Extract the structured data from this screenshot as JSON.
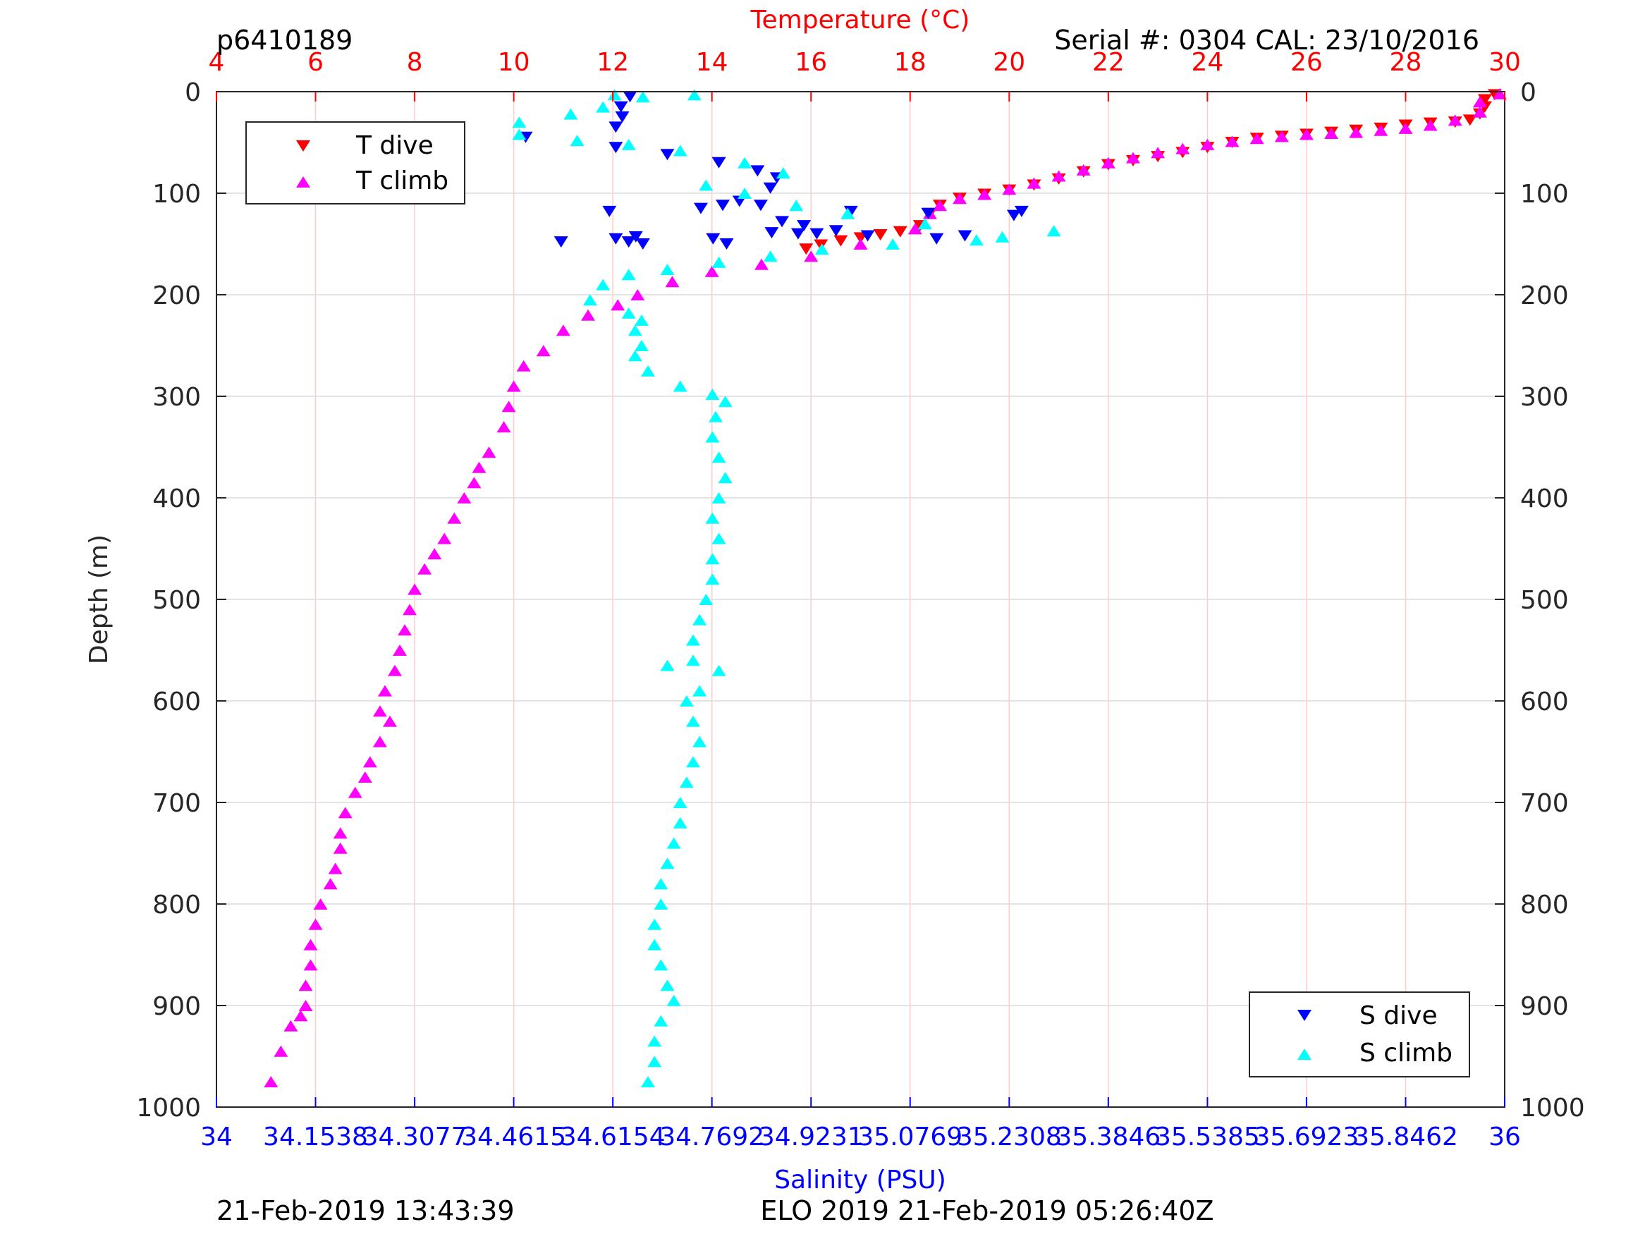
{
  "header": {
    "left": "p6410189",
    "right": "Serial #: 0304  CAL: 23/10/2016"
  },
  "footer": {
    "left": "21-Feb-2019 13:43:39",
    "center": "ELO 2019 21-Feb-2019 05:26:40Z"
  },
  "chart_data": {
    "type": "scatter",
    "title": "",
    "ylabel": "Depth (m)",
    "ylim": [
      0,
      1000
    ],
    "y_reversed": true,
    "y_ticks": [
      "0",
      "100",
      "200",
      "300",
      "400",
      "500",
      "600",
      "700",
      "800",
      "900",
      "1000"
    ],
    "temperature_axis": {
      "label": "Temperature (°C)",
      "position": "top",
      "color": "#ff0000",
      "range": [
        4,
        30
      ],
      "ticks": [
        "4",
        "6",
        "8",
        "10",
        "12",
        "14",
        "16",
        "18",
        "20",
        "22",
        "24",
        "26",
        "28",
        "30"
      ]
    },
    "salinity_axis": {
      "label": "Salinity (PSU)",
      "position": "bottom",
      "color": "#0000ff",
      "range": [
        34,
        36
      ],
      "ticks": [
        "34",
        "34.1538",
        "34.3077",
        "34.4615",
        "34.6154",
        "34.7692",
        "34.9231",
        "35.0769",
        "35.2308",
        "35.3846",
        "35.5385",
        "35.6923",
        "35.8462",
        "36"
      ]
    },
    "grid": true,
    "legends": [
      {
        "placement": "top-left",
        "entries": [
          {
            "label": "T dive",
            "marker": "triangle-down",
            "color": "#ff0000"
          },
          {
            "label": "T climb",
            "marker": "triangle-up",
            "color": "#ff00ff"
          }
        ]
      },
      {
        "placement": "bottom-right",
        "entries": [
          {
            "label": "S dive",
            "marker": "triangle-down",
            "color": "#0000ff"
          },
          {
            "label": "S climb",
            "marker": "triangle-up",
            "color": "#00ffff"
          }
        ]
      }
    ],
    "series": [
      {
        "name": "T dive",
        "axis": "temperature",
        "marker": "triangle-down",
        "color": "#ff0000",
        "points": [
          [
            29.8,
            3
          ],
          [
            29.6,
            8
          ],
          [
            29.6,
            15
          ],
          [
            29.5,
            22
          ],
          [
            29.3,
            28
          ],
          [
            29.0,
            30
          ],
          [
            28.5,
            31
          ],
          [
            28.0,
            33
          ],
          [
            27.5,
            36
          ],
          [
            27.0,
            38
          ],
          [
            26.5,
            40
          ],
          [
            26.0,
            42
          ],
          [
            25.5,
            44
          ],
          [
            25.0,
            46
          ],
          [
            24.5,
            50
          ],
          [
            24.0,
            55
          ],
          [
            23.5,
            60
          ],
          [
            23.0,
            64
          ],
          [
            22.5,
            68
          ],
          [
            22.0,
            72
          ],
          [
            21.5,
            79
          ],
          [
            21.0,
            86
          ],
          [
            20.5,
            92
          ],
          [
            20.0,
            97
          ],
          [
            19.5,
            101
          ],
          [
            19.0,
            105
          ],
          [
            18.6,
            112
          ],
          [
            18.4,
            120
          ],
          [
            18.2,
            132
          ],
          [
            17.8,
            138
          ],
          [
            17.4,
            141
          ],
          [
            17.0,
            144
          ],
          [
            16.6,
            147
          ],
          [
            16.2,
            151
          ],
          [
            15.9,
            155
          ]
        ]
      },
      {
        "name": "T climb",
        "axis": "temperature",
        "marker": "triangle-up",
        "color": "#ff00ff",
        "points": [
          [
            29.9,
            2
          ],
          [
            29.5,
            10
          ],
          [
            29.5,
            20
          ],
          [
            29.0,
            28
          ],
          [
            28.5,
            33
          ],
          [
            28.0,
            36
          ],
          [
            27.5,
            38
          ],
          [
            27.0,
            40
          ],
          [
            26.5,
            41
          ],
          [
            26.0,
            42
          ],
          [
            25.5,
            44
          ],
          [
            25.0,
            46
          ],
          [
            24.5,
            49
          ],
          [
            24.0,
            52
          ],
          [
            23.5,
            56
          ],
          [
            23.0,
            60
          ],
          [
            22.5,
            65
          ],
          [
            22.0,
            70
          ],
          [
            21.5,
            77
          ],
          [
            21.0,
            83
          ],
          [
            20.5,
            90
          ],
          [
            20.0,
            96
          ],
          [
            19.5,
            101
          ],
          [
            19.0,
            105
          ],
          [
            18.6,
            112
          ],
          [
            18.4,
            120
          ],
          [
            18.1,
            135
          ],
          [
            17.0,
            150
          ],
          [
            16.0,
            162
          ],
          [
            15.0,
            170
          ],
          [
            14.0,
            177
          ],
          [
            13.2,
            187
          ],
          [
            12.5,
            200
          ],
          [
            12.1,
            210
          ],
          [
            11.5,
            220
          ],
          [
            11.0,
            235
          ],
          [
            10.6,
            255
          ],
          [
            10.2,
            270
          ],
          [
            10.0,
            290
          ],
          [
            9.9,
            310
          ],
          [
            9.8,
            330
          ],
          [
            9.5,
            355
          ],
          [
            9.3,
            370
          ],
          [
            9.2,
            385
          ],
          [
            9.0,
            400
          ],
          [
            8.8,
            420
          ],
          [
            8.6,
            440
          ],
          [
            8.4,
            455
          ],
          [
            8.2,
            470
          ],
          [
            8.0,
            490
          ],
          [
            7.9,
            510
          ],
          [
            7.8,
            530
          ],
          [
            7.7,
            550
          ],
          [
            7.6,
            570
          ],
          [
            7.4,
            590
          ],
          [
            7.3,
            610
          ],
          [
            7.5,
            620
          ],
          [
            7.3,
            640
          ],
          [
            7.1,
            660
          ],
          [
            7.0,
            675
          ],
          [
            6.8,
            690
          ],
          [
            6.6,
            710
          ],
          [
            6.5,
            730
          ],
          [
            6.5,
            745
          ],
          [
            6.4,
            765
          ],
          [
            6.3,
            780
          ],
          [
            6.1,
            800
          ],
          [
            6.0,
            820
          ],
          [
            5.9,
            840
          ],
          [
            5.9,
            860
          ],
          [
            5.8,
            880
          ],
          [
            5.8,
            900
          ],
          [
            5.7,
            910
          ],
          [
            5.5,
            920
          ],
          [
            5.3,
            945
          ],
          [
            5.1,
            975
          ]
        ]
      },
      {
        "name": "S dive",
        "axis": "salinity",
        "marker": "triangle-down",
        "color": "#0000ff",
        "points": [
          [
            34.642,
            5
          ],
          [
            34.628,
            15
          ],
          [
            34.63,
            25
          ],
          [
            34.62,
            35
          ],
          [
            34.48,
            45
          ],
          [
            34.62,
            55
          ],
          [
            34.7,
            62
          ],
          [
            34.78,
            70
          ],
          [
            34.84,
            78
          ],
          [
            34.87,
            85
          ],
          [
            34.86,
            95
          ],
          [
            34.752,
            115
          ],
          [
            34.786,
            112
          ],
          [
            34.812,
            108
          ],
          [
            34.845,
            112
          ],
          [
            34.878,
            128
          ],
          [
            34.912,
            132
          ],
          [
            34.985,
            118
          ],
          [
            35.105,
            120
          ],
          [
            35.238,
            122
          ],
          [
            35.25,
            118
          ],
          [
            34.61,
            118
          ],
          [
            34.535,
            148
          ],
          [
            34.62,
            145
          ],
          [
            34.64,
            148
          ],
          [
            34.662,
            150
          ],
          [
            34.651,
            143
          ],
          [
            34.771,
            145
          ],
          [
            34.792,
            150
          ],
          [
            34.862,
            139
          ],
          [
            34.903,
            140
          ],
          [
            34.932,
            140
          ],
          [
            34.962,
            137
          ],
          [
            35.011,
            142
          ],
          [
            35.118,
            145
          ],
          [
            35.162,
            142
          ]
        ]
      },
      {
        "name": "S climb",
        "axis": "salinity",
        "marker": "triangle-up",
        "color": "#00ffff",
        "points": [
          [
            34.618,
            3
          ],
          [
            34.662,
            5
          ],
          [
            34.742,
            3
          ],
          [
            34.6,
            15
          ],
          [
            34.55,
            22
          ],
          [
            34.47,
            30
          ],
          [
            34.35,
            40
          ],
          [
            34.47,
            42
          ],
          [
            34.56,
            48
          ],
          [
            34.64,
            52
          ],
          [
            34.72,
            58
          ],
          [
            34.82,
            70
          ],
          [
            34.88,
            80
          ],
          [
            34.76,
            92
          ],
          [
            34.82,
            100
          ],
          [
            34.9,
            112
          ],
          [
            34.98,
            120
          ],
          [
            35.1,
            130
          ],
          [
            35.22,
            143
          ],
          [
            35.3,
            137
          ],
          [
            35.18,
            146
          ],
          [
            35.05,
            150
          ],
          [
            34.94,
            155
          ],
          [
            34.86,
            162
          ],
          [
            34.78,
            168
          ],
          [
            34.7,
            175
          ],
          [
            34.64,
            180
          ],
          [
            34.6,
            190
          ],
          [
            34.58,
            205
          ],
          [
            34.64,
            218
          ],
          [
            34.66,
            225
          ],
          [
            34.65,
            235
          ],
          [
            34.66,
            250
          ],
          [
            34.65,
            260
          ],
          [
            34.67,
            275
          ],
          [
            34.72,
            290
          ],
          [
            34.77,
            298
          ],
          [
            34.79,
            305
          ],
          [
            34.775,
            320
          ],
          [
            34.77,
            340
          ],
          [
            34.78,
            360
          ],
          [
            34.79,
            380
          ],
          [
            34.78,
            400
          ],
          [
            34.77,
            420
          ],
          [
            34.78,
            440
          ],
          [
            34.77,
            460
          ],
          [
            34.77,
            480
          ],
          [
            34.76,
            500
          ],
          [
            34.75,
            520
          ],
          [
            34.74,
            540
          ],
          [
            34.7,
            565
          ],
          [
            34.74,
            560
          ],
          [
            34.78,
            570
          ],
          [
            34.75,
            590
          ],
          [
            34.73,
            600
          ],
          [
            34.74,
            620
          ],
          [
            34.75,
            640
          ],
          [
            34.74,
            660
          ],
          [
            34.73,
            680
          ],
          [
            34.72,
            700
          ],
          [
            34.72,
            720
          ],
          [
            34.71,
            740
          ],
          [
            34.7,
            760
          ],
          [
            34.69,
            780
          ],
          [
            34.69,
            800
          ],
          [
            34.68,
            820
          ],
          [
            34.68,
            840
          ],
          [
            34.69,
            860
          ],
          [
            34.7,
            880
          ],
          [
            34.71,
            895
          ],
          [
            34.69,
            915
          ],
          [
            34.68,
            935
          ],
          [
            34.68,
            955
          ],
          [
            34.67,
            975
          ]
        ]
      }
    ]
  }
}
